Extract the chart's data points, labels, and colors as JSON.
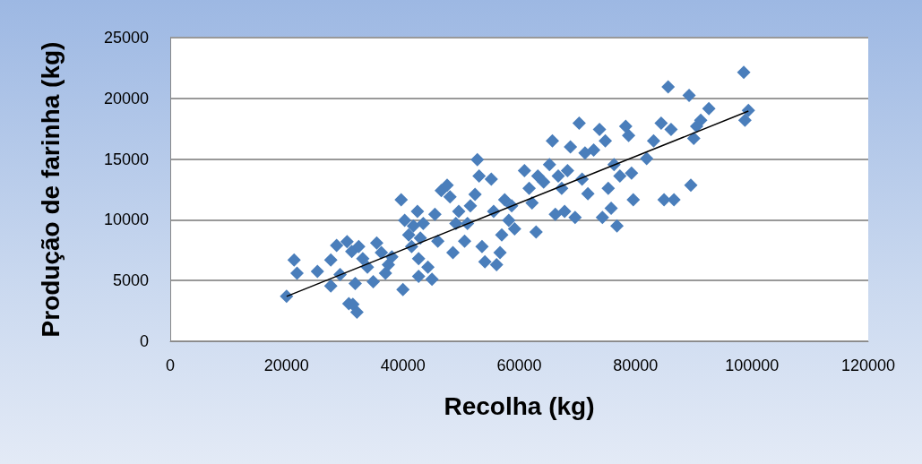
{
  "chart_data": {
    "type": "scatter",
    "xlabel": "Recolha (kg)",
    "ylabel": "Produção de farinha (kg)",
    "xlim": [
      0,
      120000
    ],
    "xticks": [
      0,
      20000,
      40000,
      60000,
      80000,
      100000,
      120000
    ],
    "ylim": [
      0,
      25000
    ],
    "yticks": [
      0,
      5000,
      10000,
      15000,
      20000,
      25000
    ],
    "grid": "y",
    "marker": "diamond",
    "series": [
      {
        "color": "#4a7ebb",
        "x": [
          20000,
          21300,
          21800,
          25300,
          27600,
          27600,
          28600,
          29200,
          30400,
          30700,
          31400,
          32100,
          31800,
          31200,
          32400,
          33100,
          33900,
          34900,
          35500,
          36300,
          37000,
          37500,
          38100,
          40000,
          39700,
          40300,
          41000,
          41500,
          41800,
          42500,
          42700,
          43000,
          43500,
          44300,
          42700,
          45000,
          45500,
          46000,
          46600,
          47600,
          48100,
          48600,
          49100,
          49600,
          50600,
          51100,
          51600,
          52400,
          52800,
          53100,
          53600,
          54100,
          55200,
          55600,
          56100,
          56700,
          57000,
          57500,
          58200,
          58700,
          59200,
          60900,
          61700,
          62200,
          62900,
          63200,
          64200,
          65200,
          65700,
          66200,
          66700,
          67300,
          67800,
          68300,
          68800,
          69600,
          70300,
          70800,
          71300,
          71800,
          72800,
          73800,
          74300,
          74800,
          75300,
          75800,
          76300,
          76800,
          77300,
          78300,
          78800,
          79300,
          79600,
          81900,
          83100,
          84400,
          84900,
          85600,
          86100,
          86600,
          89200,
          89500,
          90000,
          90500,
          91200,
          92600,
          98600,
          98800,
          99400
        ],
        "values": [
          3700,
          6700,
          5600,
          5750,
          6700,
          4550,
          7900,
          5500,
          8200,
          3100,
          3050,
          2400,
          4750,
          7400,
          7800,
          6800,
          6100,
          4900,
          8100,
          7300,
          5600,
          6300,
          6950,
          4250,
          11650,
          9950,
          8750,
          7800,
          9500,
          10700,
          6800,
          8500,
          9700,
          6100,
          5350,
          5100,
          10450,
          8250,
          12400,
          12850,
          11900,
          7300,
          9700,
          10700,
          8250,
          9700,
          11150,
          12100,
          14950,
          13600,
          7800,
          6550,
          13350,
          10700,
          6300,
          7300,
          8750,
          11650,
          9950,
          11150,
          9250,
          14050,
          12600,
          11400,
          9000,
          13600,
          13100,
          14550,
          16500,
          10450,
          13600,
          12600,
          10700,
          14050,
          16000,
          10200,
          17950,
          13350,
          15500,
          12150,
          15750,
          17450,
          10200,
          16500,
          12600,
          10950,
          14550,
          9500,
          13600,
          17700,
          16950,
          13850,
          11650,
          15050,
          16500,
          17950,
          11650,
          20950,
          17450,
          11650,
          20250,
          12850,
          16700,
          17700,
          18200,
          19150,
          22150,
          18200,
          19000
        ]
      },
      {
        "type": "line",
        "marker": "none",
        "color": "#000000",
        "x": [
          20000,
          99400
        ],
        "values": [
          3700,
          18950
        ]
      }
    ]
  }
}
